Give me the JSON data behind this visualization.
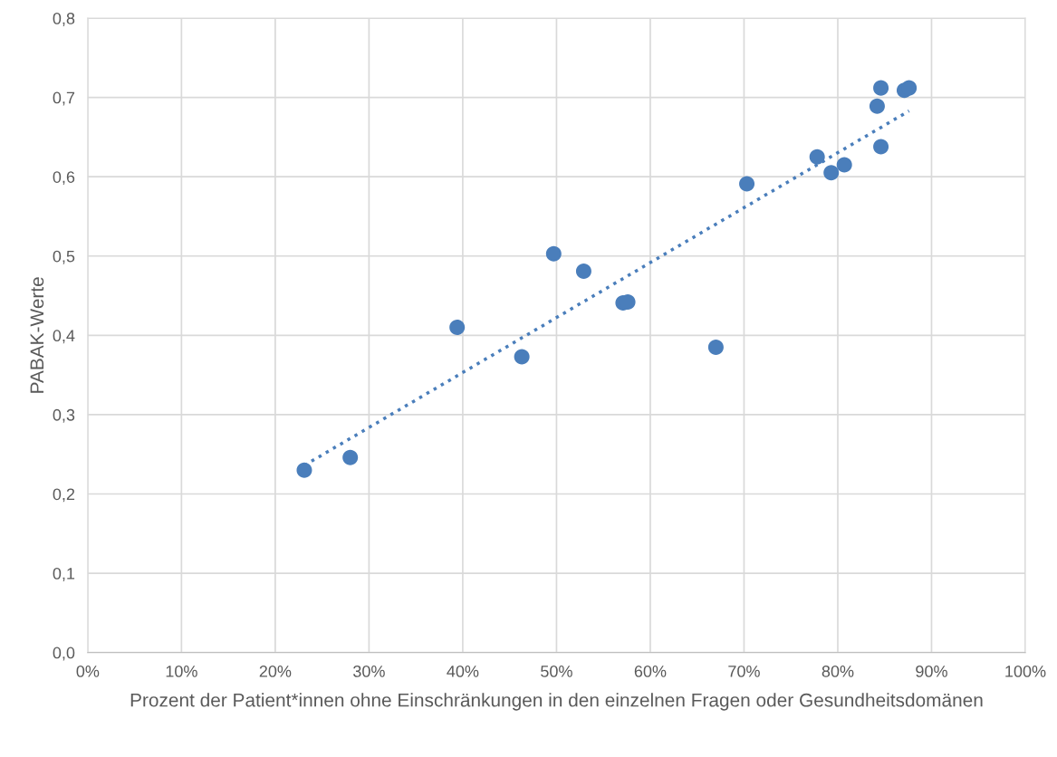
{
  "chart_data": {
    "type": "scatter",
    "xlabel": "Prozent der Patient*innen ohne Einschränkungen in den einzelnen Fragen oder Gesundheitsdomänen",
    "ylabel": "PABAK-Werte",
    "xlim": [
      0,
      100
    ],
    "ylim": [
      0,
      0.8
    ],
    "xticks": [
      {
        "value": 0,
        "label": "0%"
      },
      {
        "value": 10,
        "label": "10%"
      },
      {
        "value": 20,
        "label": "20%"
      },
      {
        "value": 30,
        "label": "30%"
      },
      {
        "value": 40,
        "label": "40%"
      },
      {
        "value": 50,
        "label": "50%"
      },
      {
        "value": 60,
        "label": "60%"
      },
      {
        "value": 70,
        "label": "70%"
      },
      {
        "value": 80,
        "label": "80%"
      },
      {
        "value": 90,
        "label": "90%"
      },
      {
        "value": 100,
        "label": "100%"
      }
    ],
    "yticks": [
      {
        "value": 0,
        "label": "0,0"
      },
      {
        "value": 0.1,
        "label": "0,1"
      },
      {
        "value": 0.2,
        "label": "0,2"
      },
      {
        "value": 0.3,
        "label": "0,3"
      },
      {
        "value": 0.4,
        "label": "0,4"
      },
      {
        "value": 0.5,
        "label": "0,5"
      },
      {
        "value": 0.6,
        "label": "0,6"
      },
      {
        "value": 0.7,
        "label": "0,7"
      },
      {
        "value": 0.8,
        "label": "0,8"
      }
    ],
    "grid": true,
    "series": [
      {
        "marker": "circle",
        "color": "#4a7ebb",
        "x": [
          23.1,
          28.0,
          39.4,
          46.3,
          49.7,
          52.9,
          57.1,
          57.6,
          67.0,
          70.3,
          77.8,
          79.3,
          80.7,
          84.2,
          84.6,
          84.6,
          87.1,
          87.6
        ],
        "values": [
          0.23,
          0.246,
          0.41,
          0.373,
          0.503,
          0.481,
          0.441,
          0.442,
          0.385,
          0.591,
          0.625,
          0.605,
          0.615,
          0.689,
          0.712,
          0.638,
          0.709,
          0.712
        ]
      },
      {
        "type": "line",
        "color": "#4a7ebb",
        "line_style": "dotted",
        "x": [
          23.1,
          87.6
        ],
        "values": [
          0.236,
          0.683
        ]
      }
    ]
  }
}
